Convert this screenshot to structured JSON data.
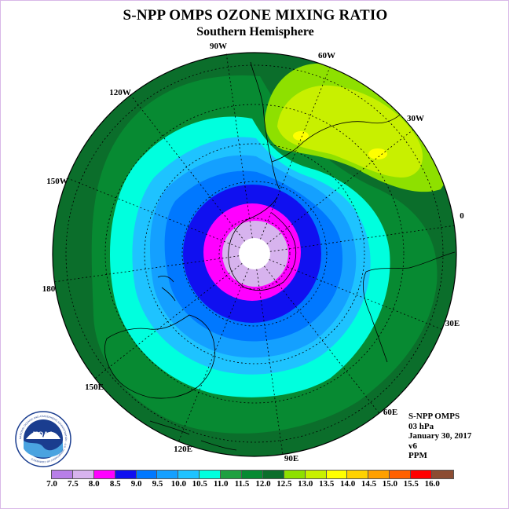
{
  "header": {
    "title": "S-NPP OMPS OZONE MIXING RATIO",
    "subtitle": "Southern Hemisphere"
  },
  "map": {
    "projection": "south polar stereographic",
    "longitude_labels": [
      "90W",
      "60W",
      "30W",
      "0",
      "30E",
      "60E",
      "90E",
      "120E",
      "150E",
      "180",
      "150W",
      "120W"
    ]
  },
  "info": {
    "instrument": "S-NPP OMPS",
    "level": "03 hPa",
    "date": "January 30, 2017",
    "version": "v6",
    "units": "PPM"
  },
  "colorbar": {
    "labels": [
      "7.0",
      "7.5",
      "8.0",
      "8.5",
      "9.0",
      "9.5",
      "10.0",
      "10.5",
      "11.0",
      "11.5",
      "12.0",
      "12.5",
      "13.0",
      "13.5",
      "14.0",
      "14.5",
      "15.0",
      "15.5",
      "16.0"
    ],
    "colors": [
      "#b87fe8",
      "#d7b3ee",
      "#ff00ff",
      "#1010f0",
      "#0078ff",
      "#14a0ff",
      "#1ec3ff",
      "#00ffde",
      "#1fa040",
      "#078a32",
      "#0b6e2b",
      "#8ee000",
      "#c8f000",
      "#ffff00",
      "#ffd200",
      "#ffa000",
      "#ff6000",
      "#ff0000",
      "#8c4c32"
    ]
  },
  "logo": {
    "text": "NOAA",
    "ring_text": "NATIONAL OCEANIC AND ATMOSPHERIC ADMINISTRATION · U.S. DEPARTMENT OF COMMERCE"
  },
  "palette": {
    "c11_5": "#0b6e2b",
    "c11_0": "#078a32",
    "c10_5": "#00ffde",
    "c10_0": "#1ec3ff",
    "c9_5": "#14a0ff",
    "c9_0": "#0078ff",
    "c8_5": "#1010f0",
    "c8_0": "#ff00ff",
    "c7_5": "#d7b3ee",
    "c12_0": "#8ee000",
    "c12_5": "#c8f000",
    "c13_0": "#ffff00"
  }
}
